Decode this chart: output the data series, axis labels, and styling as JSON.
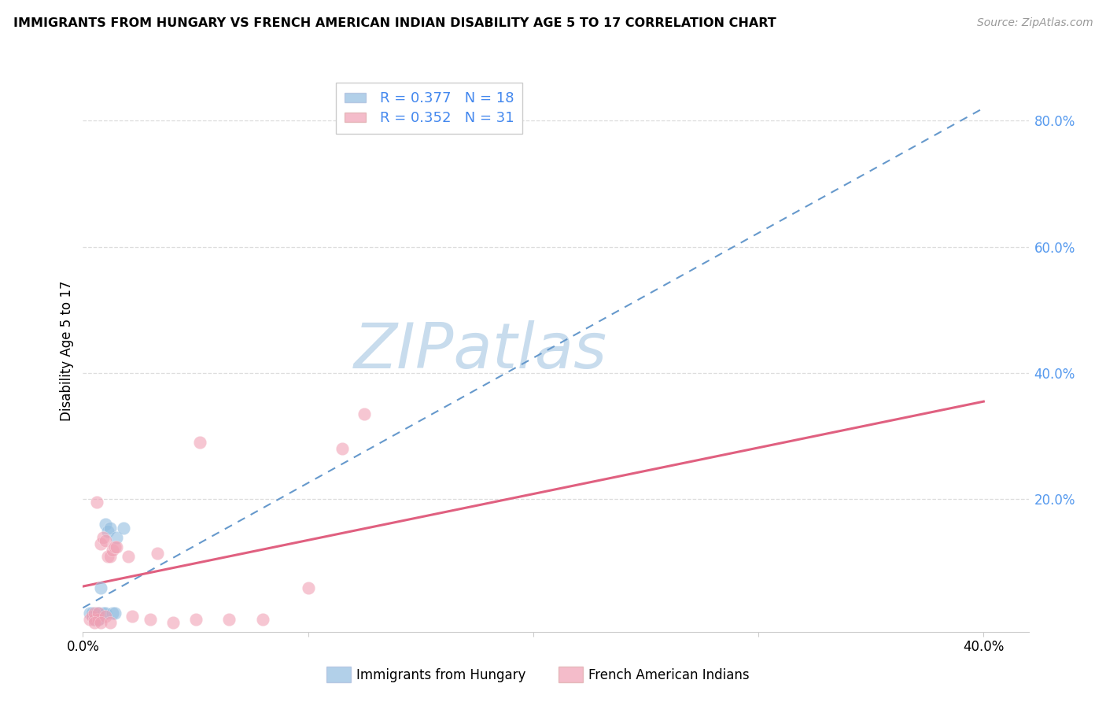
{
  "title": "IMMIGRANTS FROM HUNGARY VS FRENCH AMERICAN INDIAN DISABILITY AGE 5 TO 17 CORRELATION CHART",
  "source": "Source: ZipAtlas.com",
  "ylabel": "Disability Age 5 to 17",
  "xlim": [
    0.0,
    0.42
  ],
  "ylim": [
    -0.01,
    0.88
  ],
  "xtick_values": [
    0.0,
    0.1,
    0.2,
    0.3,
    0.4
  ],
  "xtick_labels": [
    "0.0%",
    "",
    "",
    "",
    "40.0%"
  ],
  "ytick_values_right": [
    0.2,
    0.4,
    0.6,
    0.8
  ],
  "ytick_labels_right": [
    "20.0%",
    "40.0%",
    "60.0%",
    "80.0%"
  ],
  "legend_entry_1": "R = 0.377   N = 18",
  "legend_entry_2": "R = 0.352   N = 31",
  "legend_label_blue": "Immigrants from Hungary",
  "legend_label_pink": "French American Indians",
  "watermark_text": "ZIPatlas",
  "watermark_color": "#c8dced",
  "blue_color": "#92bde0",
  "blue_line_color": "#6699cc",
  "pink_color": "#f0a0b4",
  "pink_line_color": "#e06080",
  "grid_color": "#dddddd",
  "blue_scatter": [
    [
      0.003,
      0.02
    ],
    [
      0.004,
      0.02
    ],
    [
      0.005,
      0.015
    ],
    [
      0.005,
      0.01
    ],
    [
      0.006,
      0.02
    ],
    [
      0.006,
      0.01
    ],
    [
      0.007,
      0.01
    ],
    [
      0.007,
      0.02
    ],
    [
      0.008,
      0.06
    ],
    [
      0.009,
      0.02
    ],
    [
      0.01,
      0.02
    ],
    [
      0.01,
      0.16
    ],
    [
      0.011,
      0.15
    ],
    [
      0.012,
      0.155
    ],
    [
      0.013,
      0.02
    ],
    [
      0.014,
      0.02
    ],
    [
      0.015,
      0.14
    ],
    [
      0.018,
      0.155
    ]
  ],
  "pink_scatter": [
    [
      0.003,
      0.01
    ],
    [
      0.004,
      0.015
    ],
    [
      0.005,
      0.01
    ],
    [
      0.005,
      0.02
    ],
    [
      0.006,
      0.195
    ],
    [
      0.007,
      0.01
    ],
    [
      0.007,
      0.02
    ],
    [
      0.008,
      0.13
    ],
    [
      0.009,
      0.14
    ],
    [
      0.01,
      0.135
    ],
    [
      0.01,
      0.015
    ],
    [
      0.011,
      0.11
    ],
    [
      0.012,
      0.11
    ],
    [
      0.013,
      0.12
    ],
    [
      0.014,
      0.125
    ],
    [
      0.015,
      0.125
    ],
    [
      0.02,
      0.11
    ],
    [
      0.022,
      0.015
    ],
    [
      0.03,
      0.01
    ],
    [
      0.033,
      0.115
    ],
    [
      0.05,
      0.01
    ],
    [
      0.052,
      0.29
    ],
    [
      0.065,
      0.01
    ],
    [
      0.08,
      0.01
    ],
    [
      0.1,
      0.06
    ],
    [
      0.115,
      0.28
    ],
    [
      0.125,
      0.335
    ],
    [
      0.005,
      0.005
    ],
    [
      0.008,
      0.005
    ],
    [
      0.012,
      0.005
    ],
    [
      0.04,
      0.005
    ]
  ],
  "blue_trend": [
    0.0,
    0.028,
    0.4,
    0.82
  ],
  "pink_trend": [
    0.0,
    0.062,
    0.4,
    0.355
  ]
}
